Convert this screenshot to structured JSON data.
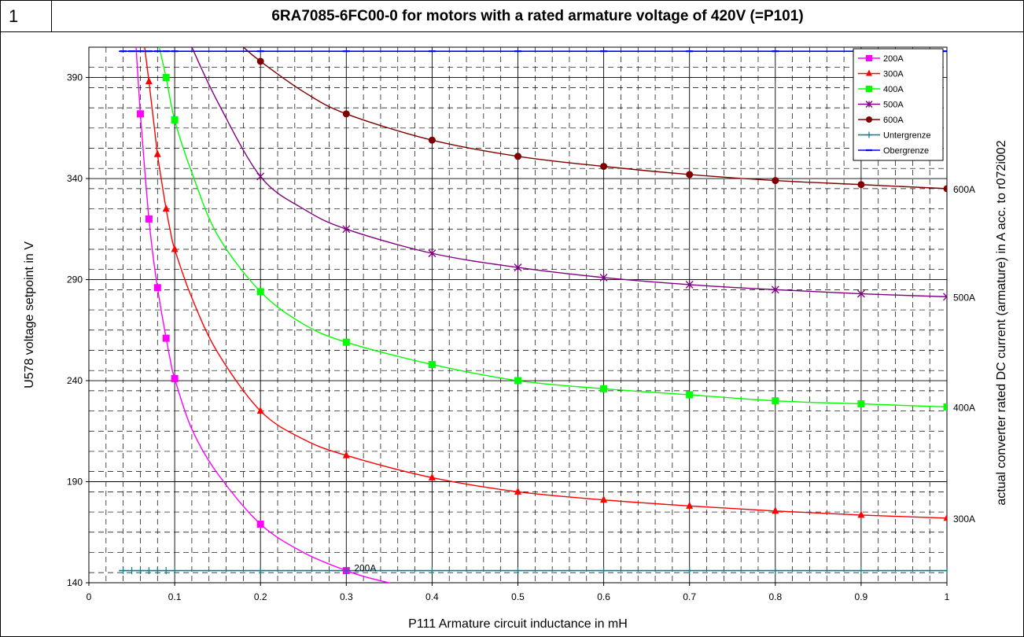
{
  "page_number": "1",
  "chart_data": {
    "type": "line",
    "title": "6RA7085-6FC00-0 for motors with a rated armature voltage of 420V (=P101)",
    "xlabel": "P111 Armature circuit inductance in mH",
    "ylabel": "U578 voltage setpoint in V",
    "y2label": "actual converter rated DC current (armature) in A acc. to r072i002",
    "xlim": [
      0,
      1
    ],
    "ylim": [
      140,
      405
    ],
    "x_ticks": [
      "0",
      "0.1",
      "0.2",
      "0.3",
      "0.4",
      "0.5",
      "0.6",
      "0.7",
      "0.8",
      "0.9",
      "1"
    ],
    "y_ticks": [
      "140",
      "190",
      "240",
      "290",
      "340",
      "390"
    ],
    "grid": true,
    "legend_position": "top-right",
    "series": [
      {
        "name": "200A",
        "color": "#ff00ff",
        "marker": "square",
        "end_label": "200A",
        "curve": [
          [
            0.055,
            405
          ],
          [
            0.06,
            372
          ],
          [
            0.065,
            345
          ],
          [
            0.07,
            320
          ],
          [
            0.075,
            301
          ],
          [
            0.08,
            286
          ],
          [
            0.085,
            273
          ],
          [
            0.09,
            261
          ],
          [
            0.095,
            250
          ],
          [
            0.1,
            241
          ],
          [
            0.12,
            216
          ],
          [
            0.15,
            194
          ],
          [
            0.2,
            169
          ],
          [
            0.25,
            155
          ],
          [
            0.3,
            146
          ],
          [
            0.33,
            142
          ],
          [
            0.36,
            139
          ]
        ],
        "marker_x": [
          0.06,
          0.07,
          0.08,
          0.09,
          0.1,
          0.2,
          0.3
        ],
        "marker_y": [
          372,
          320,
          286,
          261,
          241,
          169,
          146
        ]
      },
      {
        "name": "300A",
        "color": "#ff0000",
        "marker": "triangle",
        "end_label": "300A",
        "curve": [
          [
            0.065,
            405
          ],
          [
            0.07,
            388
          ],
          [
            0.075,
            370
          ],
          [
            0.08,
            352
          ],
          [
            0.085,
            338
          ],
          [
            0.09,
            325
          ],
          [
            0.095,
            314
          ],
          [
            0.1,
            305
          ],
          [
            0.12,
            281
          ],
          [
            0.15,
            254
          ],
          [
            0.2,
            225
          ],
          [
            0.25,
            211
          ],
          [
            0.3,
            203
          ],
          [
            0.4,
            192
          ],
          [
            0.5,
            185
          ],
          [
            0.6,
            181
          ],
          [
            0.7,
            178
          ],
          [
            0.8,
            175.5
          ],
          [
            0.9,
            173.5
          ],
          [
            1.0,
            172
          ]
        ],
        "marker_x": [
          0.07,
          0.08,
          0.09,
          0.1,
          0.2,
          0.3,
          0.4,
          0.5,
          0.6,
          0.7,
          0.8,
          0.9,
          1.0
        ],
        "marker_y": [
          388,
          352,
          325,
          305,
          225,
          203,
          192,
          185,
          181,
          178,
          175.5,
          173.5,
          172
        ]
      },
      {
        "name": "400A",
        "color": "#00ff00",
        "marker": "square",
        "end_label": "400A",
        "curve": [
          [
            0.082,
            405
          ],
          [
            0.09,
            390
          ],
          [
            0.1,
            369
          ],
          [
            0.12,
            343
          ],
          [
            0.15,
            312
          ],
          [
            0.2,
            284
          ],
          [
            0.25,
            268
          ],
          [
            0.3,
            259
          ],
          [
            0.4,
            248
          ],
          [
            0.5,
            240
          ],
          [
            0.6,
            236
          ],
          [
            0.7,
            233
          ],
          [
            0.8,
            230
          ],
          [
            0.9,
            228.5
          ],
          [
            1.0,
            227
          ]
        ],
        "marker_x": [
          0.09,
          0.1,
          0.2,
          0.3,
          0.4,
          0.5,
          0.6,
          0.7,
          0.8,
          0.9,
          1.0
        ],
        "marker_y": [
          390,
          369,
          284,
          259,
          248,
          240,
          236,
          233,
          230,
          228.5,
          227
        ]
      },
      {
        "name": "500A",
        "color": "#800080",
        "marker": "x",
        "end_label": "500A",
        "curve": [
          [
            0.12,
            405
          ],
          [
            0.15,
            378
          ],
          [
            0.2,
            341
          ],
          [
            0.25,
            325
          ],
          [
            0.3,
            315
          ],
          [
            0.4,
            303
          ],
          [
            0.5,
            296
          ],
          [
            0.6,
            291
          ],
          [
            0.7,
            287.5
          ],
          [
            0.8,
            285
          ],
          [
            0.9,
            283
          ],
          [
            1.0,
            281.5
          ]
        ],
        "marker_x": [
          0.2,
          0.3,
          0.4,
          0.5,
          0.6,
          0.7,
          0.8,
          0.9,
          1.0
        ],
        "marker_y": [
          341,
          315,
          303,
          296,
          291,
          287.5,
          285,
          283,
          281.5
        ]
      },
      {
        "name": "600A",
        "color": "#800000",
        "marker": "circle",
        "end_label": "600A",
        "curve": [
          [
            0.18,
            405
          ],
          [
            0.2,
            398
          ],
          [
            0.25,
            383
          ],
          [
            0.3,
            372
          ],
          [
            0.4,
            359
          ],
          [
            0.5,
            351
          ],
          [
            0.6,
            346
          ],
          [
            0.7,
            342
          ],
          [
            0.8,
            339
          ],
          [
            0.9,
            337
          ],
          [
            1.0,
            335
          ]
        ],
        "marker_x": [
          0.2,
          0.3,
          0.4,
          0.5,
          0.6,
          0.7,
          0.8,
          0.9,
          1.0
        ],
        "marker_y": [
          398,
          372,
          359,
          351,
          346,
          342,
          339,
          337,
          335
        ]
      },
      {
        "name": "Untergrenze",
        "color": "#008080",
        "marker": "plus",
        "curve": [
          [
            0.035,
            146
          ],
          [
            1.0,
            146
          ]
        ],
        "marker_x": [
          0.04,
          0.05,
          0.06,
          0.07,
          0.08,
          0.09,
          0.1,
          0.2,
          0.3,
          0.4,
          0.5,
          0.6,
          0.7,
          0.8,
          0.9,
          1.0
        ],
        "marker_y": [
          146,
          146,
          146,
          146,
          146,
          146,
          146,
          146,
          146,
          146,
          146,
          146,
          146,
          146,
          146,
          146
        ]
      },
      {
        "name": "Obergrenze",
        "color": "#0000ff",
        "marker": "dash",
        "curve": [
          [
            0.035,
            403
          ],
          [
            1.0,
            403
          ]
        ],
        "marker_x": [
          0.04,
          0.05,
          0.06,
          0.07,
          0.08,
          0.09,
          0.1,
          0.2,
          0.3,
          0.4,
          0.5,
          0.6,
          0.7,
          0.8,
          0.9,
          1.0
        ],
        "marker_y": [
          403,
          403,
          403,
          403,
          403,
          403,
          403,
          403,
          403,
          403,
          403,
          403,
          403,
          403,
          403,
          403
        ]
      }
    ]
  }
}
